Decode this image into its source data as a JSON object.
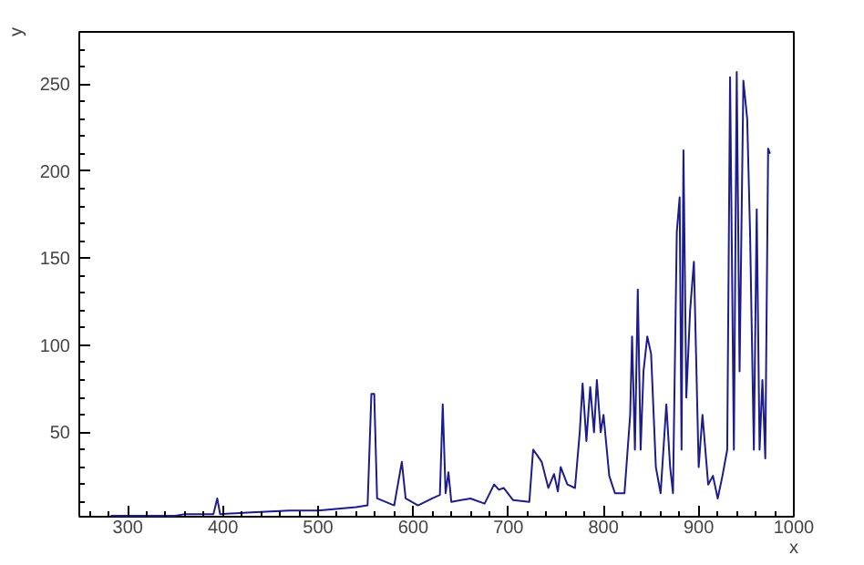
{
  "chart_data": {
    "type": "line",
    "xlabel": "x",
    "ylabel": "y",
    "x": [
      282,
      350,
      360,
      390,
      394,
      397,
      430,
      470,
      500,
      540,
      552,
      556,
      559,
      562,
      580,
      588,
      592,
      605,
      620,
      628,
      631,
      634,
      637,
      640,
      660,
      675,
      685,
      690,
      695,
      705,
      722,
      726,
      730,
      735,
      742,
      748,
      752,
      755,
      762,
      770,
      775,
      778,
      782,
      786,
      790,
      793,
      797,
      800,
      806,
      812,
      822,
      828,
      830,
      833,
      836,
      839,
      842,
      846,
      850,
      855,
      860,
      866,
      870,
      873,
      877,
      880,
      882,
      884,
      887,
      891,
      895,
      900,
      904,
      910,
      915,
      920,
      925,
      930,
      933,
      937,
      940,
      943,
      947,
      951,
      954,
      958,
      961,
      964,
      967,
      970,
      973,
      975
    ],
    "series": [
      {
        "color": "#1c1c8c",
        "values": [
          2,
          2,
          3,
          3,
          12,
          3,
          4,
          5,
          5,
          7,
          8,
          72,
          72,
          12,
          8,
          33,
          12,
          8,
          12,
          14,
          66,
          15,
          27,
          10,
          12,
          9,
          20,
          17,
          18,
          11,
          10,
          40,
          37,
          33,
          18,
          26,
          16,
          30,
          20,
          18,
          50,
          78,
          45,
          76,
          50,
          80,
          50,
          60,
          25,
          15,
          15,
          60,
          105,
          40,
          132,
          40,
          85,
          105,
          95,
          30,
          15,
          66,
          30,
          15,
          165,
          185,
          40,
          212,
          70,
          120,
          148,
          30,
          60,
          20,
          25,
          12,
          25,
          40,
          254,
          40,
          257,
          85,
          252,
          230,
          165,
          40,
          178,
          40,
          80,
          35,
          213,
          210
        ]
      }
    ],
    "xlim": [
      249,
      1000
    ],
    "ylim": [
      1.5,
      280
    ],
    "xticks": [
      300,
      400,
      500,
      600,
      700,
      800,
      900,
      1000
    ],
    "yticks": [
      50,
      100,
      150,
      200,
      250
    ],
    "grid": false,
    "marker": "none",
    "line_style": "solid"
  }
}
